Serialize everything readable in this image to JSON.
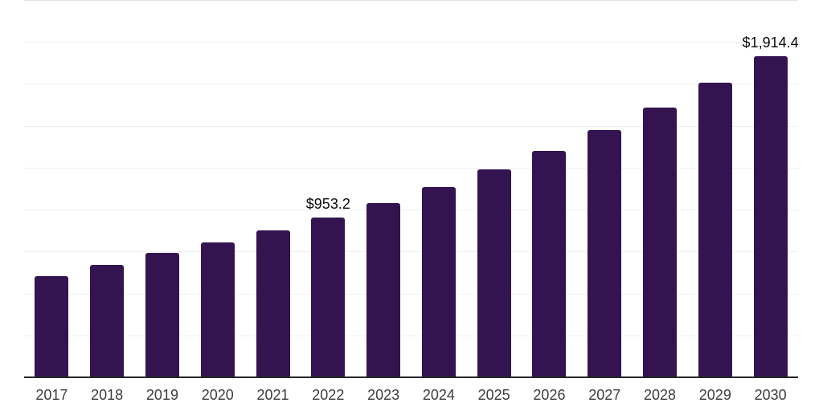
{
  "chart_data": {
    "type": "bar",
    "title": "",
    "xlabel": "",
    "ylabel": "",
    "categories": [
      "2017",
      "2018",
      "2019",
      "2020",
      "2021",
      "2022",
      "2023",
      "2024",
      "2025",
      "2026",
      "2027",
      "2028",
      "2029",
      "2030"
    ],
    "values": [
      603.1,
      668.6,
      741.9,
      802.5,
      874.3,
      953.2,
      1040.0,
      1134.7,
      1238.1,
      1350.9,
      1473.9,
      1608.2,
      1754.6,
      1914.4
    ],
    "data_labels": [
      {
        "category": "2022",
        "text": "$953.2"
      },
      {
        "category": "2030",
        "text": "$1,914.4"
      }
    ],
    "ylim": [
      0,
      2250
    ],
    "gridline_step": 250,
    "grid": true,
    "legend": "none",
    "y_axis_tick_labels_visible": false
  },
  "style": {
    "bar_color": "#331450",
    "axis_line_color": "#262626",
    "gridline_color": "#f0f0f0",
    "top_gridline_color": "#e2e2e2",
    "tick_label_color": "#3d3d3d",
    "value_label_color": "#0a0a0a",
    "background": "#ffffff"
  }
}
